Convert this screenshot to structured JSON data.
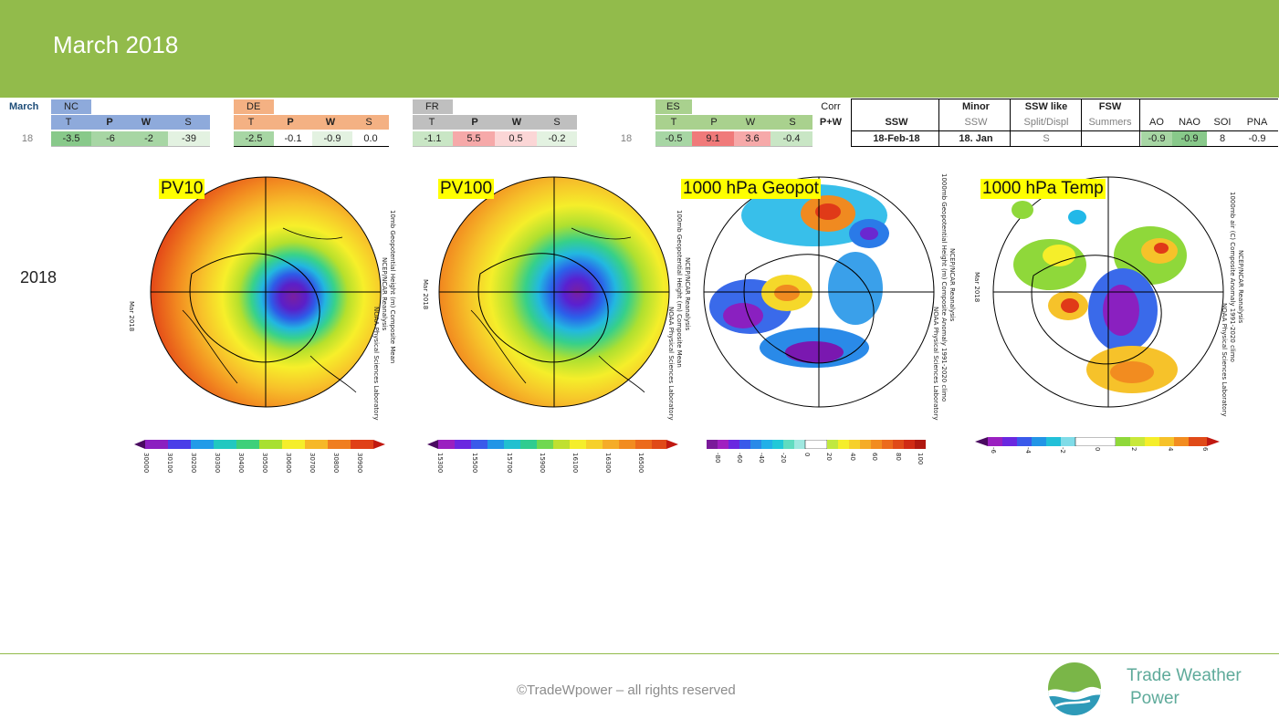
{
  "header": {
    "title": "March 2018"
  },
  "table": {
    "month_label": "March",
    "year_value": "18",
    "nc": {
      "name": "NC",
      "cols": [
        "T",
        "P",
        "W",
        "S"
      ],
      "values": [
        "-3.5",
        "-6",
        "-2",
        "-39"
      ]
    },
    "de": {
      "name": "DE",
      "cols": [
        "T",
        "P",
        "W",
        "S"
      ],
      "values": [
        "-2.5",
        "-0.1",
        "-0.9",
        "0.0"
      ]
    },
    "fr": {
      "name": "FR",
      "cols": [
        "T",
        "P",
        "W",
        "S"
      ],
      "values": [
        "-1.1",
        "5.5",
        "0.5",
        "-0.2"
      ]
    },
    "es": {
      "name": "ES",
      "year": "18",
      "cols": [
        "T",
        "P",
        "W",
        "S"
      ],
      "values": [
        "-0.5",
        "9.1",
        "3.6",
        "-0.4"
      ]
    },
    "corr": {
      "label": "Corr",
      "sublabel": "P+W"
    },
    "ssw": {
      "header": "SSW",
      "value": "18-Feb-18"
    },
    "minor": {
      "header": "Minor",
      "sub": "SSW",
      "value": "18. Jan"
    },
    "ssw_like": {
      "header": "SSW like",
      "sub": "Split/Displ",
      "value": "S"
    },
    "fsw": {
      "header": "FSW",
      "sub": "Summers",
      "value": ""
    },
    "indices": {
      "labels": [
        "AO",
        "NAO",
        "SOI",
        "PNA"
      ],
      "values": [
        "-0.9",
        "-0.9",
        "8",
        "-0.9"
      ]
    }
  },
  "row_label": "2018",
  "maps": [
    {
      "label": "PV10",
      "side_text": "Mar 2018",
      "credit_1": "NCEP/NCAR Reanalysis",
      "credit_2": "10mb Geopotential Height (m) Composite Mean",
      "credit_3": "NOAA Physical Sciences Laboratory",
      "ticks": [
        "30000",
        "30100",
        "30200",
        "30300",
        "30400",
        "30500",
        "30600",
        "30700",
        "30800",
        "30900"
      ]
    },
    {
      "label": "PV100",
      "side_text": "Mar 2018",
      "credit_1": "NCEP/NCAR Reanalysis",
      "credit_2": "100mb Geopotential Height (m) Composite Mean",
      "credit_3": "NOAA Physical Sciences Laboratory",
      "ticks": [
        "15300",
        "15500",
        "15700",
        "15900",
        "16100",
        "16300",
        "16500"
      ]
    },
    {
      "label": "1000 hPa Geopot",
      "side_text": "",
      "credit_1": "NCEP/NCAR Reanalysis",
      "credit_2": "1000mb Geopotential Height (m) Composite Anomaly 1991-2020 climo",
      "credit_3": "NOAA Physical Sciences Laboratory",
      "ticks": [
        "-80",
        "-60",
        "-40",
        "-20",
        "0",
        "20",
        "40",
        "60",
        "80",
        "100"
      ]
    },
    {
      "label": "1000 hPa Temp",
      "side_text": "Mar 2018",
      "credit_1": "NCEP/NCAR Reanalysis",
      "credit_2": "1000mb air (C) Composite Anomaly 1991-2020 climo",
      "credit_3": "NOAA Physical Sciences Laboratory",
      "ticks": [
        "-6",
        "-4",
        "-2",
        "0",
        "2",
        "4",
        "6"
      ]
    }
  ],
  "footer": {
    "copyright": "©TradeWpower – all rights reserved",
    "brand_line1": "Trade Weather",
    "brand_line2": "Power"
  }
}
